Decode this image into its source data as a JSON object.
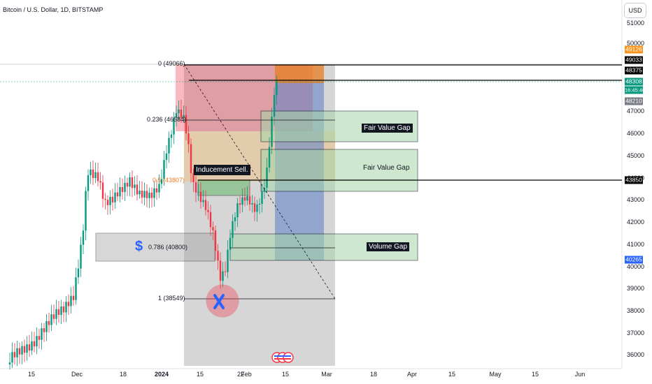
{
  "header": {
    "title": "Bitcoin / U.S. Dollar, 1D, BITSTAMP",
    "currency_button": "USD"
  },
  "y_axis_ticks": [
    "51000",
    "50000",
    "47000",
    "46000",
    "45000",
    "44000",
    "43000",
    "42000",
    "41000",
    "40000",
    "39000",
    "38000",
    "37000",
    "36000"
  ],
  "x_axis_ticks": [
    {
      "label": "15",
      "bold": false
    },
    {
      "label": "Dec",
      "bold": false
    },
    {
      "label": "18",
      "bold": false
    },
    {
      "label": "2024",
      "bold": true
    },
    {
      "label": "15",
      "bold": false
    },
    {
      "label": "22",
      "bold": false
    },
    {
      "label": "Feb",
      "bold": false
    },
    {
      "label": "15",
      "bold": false
    },
    {
      "label": "Mar",
      "bold": false
    },
    {
      "label": "18",
      "bold": false
    },
    {
      "label": "Apr",
      "bold": false
    },
    {
      "label": "15",
      "bold": false
    },
    {
      "label": "May",
      "bold": false
    },
    {
      "label": "15",
      "bold": false
    },
    {
      "label": "Jun",
      "bold": false
    }
  ],
  "price_tags": [
    {
      "text": "49126",
      "color": "#f7931a"
    },
    {
      "text": "49033",
      "color": "#000000"
    },
    {
      "text": "48375",
      "color": "#000000"
    },
    {
      "text": "48308",
      "color": "#089981"
    },
    {
      "text": "16:45:46",
      "color": "#089981"
    },
    {
      "text": "48210",
      "color": "#787b86"
    },
    {
      "text": "43850",
      "color": "#000000"
    },
    {
      "text": "40265",
      "color": "#2962ff"
    }
  ],
  "fib_levels": [
    {
      "text": "0 (49066)"
    },
    {
      "text": "0.236 (46584)"
    },
    {
      "text": "0.5 (43807)"
    },
    {
      "text": "0.786 (40800)"
    },
    {
      "text": "1 (38549)"
    }
  ],
  "annotations": {
    "fvg1": "Fair Value Gap",
    "fvg2": "Fair Value Gap",
    "volume_gap": "Volume Gap",
    "inducement": "Inducement Sell.",
    "dollar_icon": "$"
  },
  "colors": {
    "up": "#089981",
    "down": "#f23645",
    "fib_dash": "#131722"
  }
}
